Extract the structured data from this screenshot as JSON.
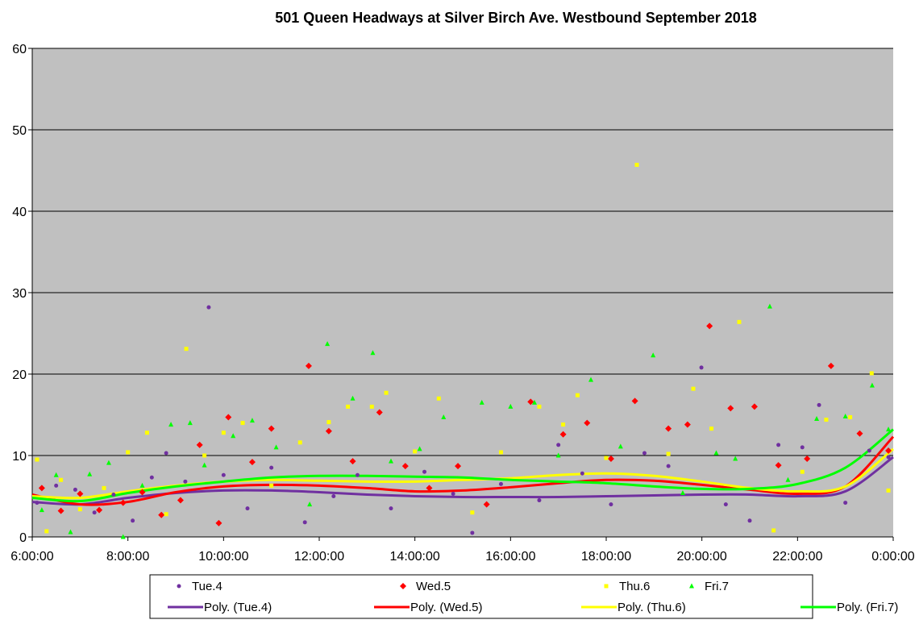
{
  "chart_data": {
    "type": "scatter",
    "title": "501 Queen Headways at Silver Birch Ave. Westbound September 2018",
    "xlabel": "",
    "ylabel": "",
    "xlim_hours": [
      6,
      24
    ],
    "ylim": [
      0,
      60
    ],
    "y_ticks": [
      0,
      10,
      20,
      30,
      40,
      50,
      60
    ],
    "x_ticks": [
      {
        "hour": 6,
        "label": "6:00:00"
      },
      {
        "hour": 8,
        "label": "8:00:00"
      },
      {
        "hour": 10,
        "label": "10:00:00"
      },
      {
        "hour": 12,
        "label": "12:00:00"
      },
      {
        "hour": 14,
        "label": "14:00:00"
      },
      {
        "hour": 16,
        "label": "16:00:00"
      },
      {
        "hour": 18,
        "label": "18:00:00"
      },
      {
        "hour": 20,
        "label": "20:00:00"
      },
      {
        "hour": 22,
        "label": "22:00:00"
      },
      {
        "hour": 24,
        "label": "0:00:00"
      }
    ],
    "grid": "horizontal",
    "legend_placement": "bottom",
    "series": [
      {
        "name": "Tue.4",
        "marker": "circle",
        "color": "#7030A0",
        "points": [
          [
            6.1,
            4.2
          ],
          [
            6.5,
            6.3
          ],
          [
            6.9,
            5.8
          ],
          [
            7.3,
            3.0
          ],
          [
            7.7,
            5.2
          ],
          [
            8.1,
            2.0
          ],
          [
            8.5,
            7.3
          ],
          [
            8.8,
            10.3
          ],
          [
            9.2,
            6.8
          ],
          [
            9.69,
            28.2
          ],
          [
            10.0,
            7.6
          ],
          [
            10.5,
            3.5
          ],
          [
            11.0,
            8.5
          ],
          [
            11.7,
            1.8
          ],
          [
            12.3,
            5.0
          ],
          [
            12.8,
            7.6
          ],
          [
            13.5,
            3.5
          ],
          [
            14.2,
            8.0
          ],
          [
            14.8,
            5.3
          ],
          [
            15.2,
            0.5
          ],
          [
            15.8,
            6.5
          ],
          [
            16.6,
            4.5
          ],
          [
            17.0,
            11.3
          ],
          [
            17.5,
            7.8
          ],
          [
            18.1,
            4.0
          ],
          [
            18.8,
            10.3
          ],
          [
            19.3,
            8.7
          ],
          [
            19.99,
            20.8
          ],
          [
            20.5,
            4.0
          ],
          [
            21.0,
            2.0
          ],
          [
            21.6,
            11.3
          ],
          [
            22.1,
            11.0
          ],
          [
            22.45,
            16.2
          ],
          [
            23.0,
            4.2
          ],
          [
            23.5,
            10.6
          ],
          [
            23.9,
            9.8
          ]
        ]
      },
      {
        "name": "Wed.5",
        "marker": "diamond",
        "color": "#FF0000",
        "points": [
          [
            6.2,
            6.0
          ],
          [
            6.6,
            3.2
          ],
          [
            7.0,
            5.3
          ],
          [
            7.4,
            3.3
          ],
          [
            7.9,
            4.2
          ],
          [
            8.3,
            5.5
          ],
          [
            8.7,
            2.7
          ],
          [
            9.1,
            4.5
          ],
          [
            9.5,
            11.3
          ],
          [
            9.9,
            1.7
          ],
          [
            10.1,
            14.7
          ],
          [
            10.6,
            9.2
          ],
          [
            11.0,
            13.3
          ],
          [
            11.78,
            21.0
          ],
          [
            12.2,
            13.0
          ],
          [
            12.7,
            9.3
          ],
          [
            13.26,
            15.3
          ],
          [
            13.8,
            8.7
          ],
          [
            14.3,
            6.0
          ],
          [
            14.9,
            8.7
          ],
          [
            15.5,
            4.0
          ],
          [
            16.42,
            16.6
          ],
          [
            17.1,
            12.6
          ],
          [
            17.6,
            14.0
          ],
          [
            18.1,
            9.6
          ],
          [
            18.6,
            16.7
          ],
          [
            19.3,
            13.3
          ],
          [
            19.7,
            13.8
          ],
          [
            20.16,
            25.9
          ],
          [
            20.6,
            15.8
          ],
          [
            21.1,
            16.0
          ],
          [
            21.6,
            8.8
          ],
          [
            22.2,
            9.6
          ],
          [
            22.7,
            21.0
          ],
          [
            23.3,
            12.7
          ],
          [
            23.9,
            10.6
          ]
        ]
      },
      {
        "name": "Thu.6",
        "marker": "square",
        "color": "#FFFF00",
        "points": [
          [
            6.1,
            9.5
          ],
          [
            6.3,
            0.7
          ],
          [
            6.6,
            7.0
          ],
          [
            7.0,
            3.4
          ],
          [
            7.5,
            6.0
          ],
          [
            8.0,
            10.4
          ],
          [
            8.4,
            12.8
          ],
          [
            8.8,
            2.8
          ],
          [
            9.22,
            23.1
          ],
          [
            9.6,
            10.0
          ],
          [
            10.0,
            12.8
          ],
          [
            10.4,
            14.0
          ],
          [
            11.0,
            6.3
          ],
          [
            11.6,
            11.6
          ],
          [
            12.2,
            14.1
          ],
          [
            12.6,
            16.0
          ],
          [
            13.1,
            16.0
          ],
          [
            13.4,
            17.7
          ],
          [
            14.0,
            10.5
          ],
          [
            14.5,
            17.0
          ],
          [
            15.2,
            3.0
          ],
          [
            15.8,
            10.4
          ],
          [
            16.6,
            16.0
          ],
          [
            17.1,
            13.8
          ],
          [
            17.4,
            17.4
          ],
          [
            18.0,
            9.7
          ],
          [
            18.64,
            45.7
          ],
          [
            19.3,
            10.2
          ],
          [
            19.82,
            18.2
          ],
          [
            20.2,
            13.3
          ],
          [
            20.78,
            26.4
          ],
          [
            21.5,
            0.8
          ],
          [
            22.1,
            8.0
          ],
          [
            22.6,
            14.4
          ],
          [
            23.1,
            14.7
          ],
          [
            23.55,
            20.1
          ],
          [
            23.9,
            5.7
          ]
        ]
      },
      {
        "name": "Fri.7",
        "marker": "triangle",
        "color": "#00FF00",
        "points": [
          [
            6.2,
            3.3
          ],
          [
            6.5,
            7.6
          ],
          [
            6.8,
            0.6
          ],
          [
            7.2,
            7.7
          ],
          [
            7.6,
            9.1
          ],
          [
            7.9,
            0.0
          ],
          [
            8.3,
            6.3
          ],
          [
            8.9,
            13.8
          ],
          [
            9.3,
            14.0
          ],
          [
            9.6,
            8.8
          ],
          [
            10.2,
            12.4
          ],
          [
            10.6,
            14.3
          ],
          [
            11.1,
            11.0
          ],
          [
            11.8,
            4.0
          ],
          [
            12.17,
            23.7
          ],
          [
            12.7,
            17.0
          ],
          [
            13.12,
            22.6
          ],
          [
            13.5,
            9.3
          ],
          [
            14.1,
            10.8
          ],
          [
            14.6,
            14.7
          ],
          [
            15.4,
            16.5
          ],
          [
            16.0,
            16.0
          ],
          [
            16.5,
            16.5
          ],
          [
            17.0,
            10.0
          ],
          [
            17.68,
            19.3
          ],
          [
            18.3,
            11.1
          ],
          [
            18.98,
            22.3
          ],
          [
            19.6,
            5.4
          ],
          [
            20.3,
            10.3
          ],
          [
            20.7,
            9.6
          ],
          [
            21.42,
            28.3
          ],
          [
            21.8,
            7.0
          ],
          [
            22.4,
            14.5
          ],
          [
            23.0,
            14.8
          ],
          [
            23.56,
            18.6
          ],
          [
            23.9,
            13.2
          ]
        ]
      }
    ],
    "trendlines": {
      "hours": [
        6,
        7,
        8,
        9,
        10,
        11,
        12,
        13,
        14,
        15,
        16,
        17,
        18,
        19,
        20,
        21,
        22,
        23,
        24
      ],
      "series": [
        {
          "name": "Poly. (Tue.4)",
          "color": "#7030A0",
          "values": [
            4.3,
            4.0,
            4.8,
            5.4,
            5.7,
            5.7,
            5.5,
            5.2,
            5.0,
            4.9,
            4.9,
            4.9,
            5.0,
            5.1,
            5.2,
            5.2,
            5.0,
            5.6,
            9.8
          ]
        },
        {
          "name": "Poly. (Wed.5)",
          "color": "#FF0000",
          "values": [
            5.2,
            4.0,
            4.3,
            5.5,
            6.2,
            6.4,
            6.3,
            6.0,
            5.6,
            5.7,
            6.1,
            6.6,
            7.0,
            6.9,
            6.4,
            5.8,
            5.3,
            6.2,
            12.3
          ]
        },
        {
          "name": "Poly. (Thu.6)",
          "color": "#FFFF00",
          "values": [
            5.0,
            4.8,
            5.6,
            6.3,
            6.8,
            7.0,
            6.9,
            6.8,
            6.8,
            7.0,
            7.2,
            7.6,
            7.8,
            7.5,
            6.8,
            6.0,
            5.6,
            6.2,
            10.8
          ]
        },
        {
          "name": "Poly. (Fri.7)",
          "color": "#00FF00",
          "values": [
            4.8,
            4.4,
            5.4,
            6.2,
            6.8,
            7.3,
            7.5,
            7.5,
            7.4,
            7.3,
            7.0,
            6.8,
            6.6,
            6.2,
            5.9,
            5.9,
            6.5,
            8.5,
            13.2
          ]
        }
      ]
    },
    "plot_background": "#C0C0C0"
  }
}
